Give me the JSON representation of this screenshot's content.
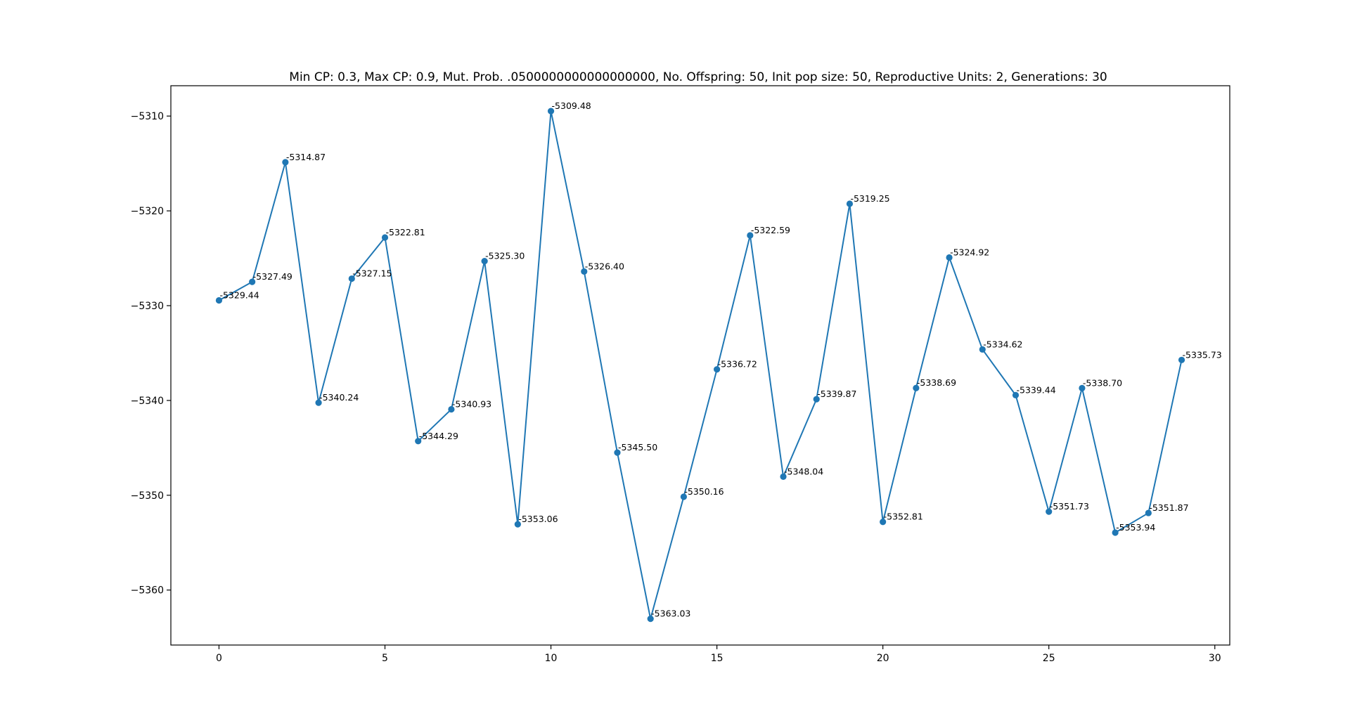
{
  "chart_data": {
    "type": "line",
    "title": "Min CP: 0.3,  Max  CP: 0.9,  Mut. Prob. .0500000000000000000,  No. Offspring: 50,  Init pop size: 50,  Reproductive Units: 2,  Generations: 30",
    "xlabel": "",
    "ylabel": "",
    "xlim": [
      -1.45,
      30.45
    ],
    "ylim": [
      -5365.8,
      -5306.8
    ],
    "xticks": [
      0,
      5,
      10,
      15,
      20,
      25,
      30
    ],
    "yticks": [
      -5310,
      -5320,
      -5330,
      -5340,
      -5350,
      -5360
    ],
    "grid": false,
    "legend": "none",
    "color": "#1f77b4",
    "series": [
      {
        "x": [
          0,
          1,
          2,
          3,
          4,
          5,
          6,
          7,
          8,
          9,
          10,
          11,
          12,
          13,
          14,
          15,
          16,
          17,
          18,
          19,
          20,
          21,
          22,
          23,
          24,
          25,
          26,
          27,
          28,
          29
        ],
        "values": [
          -5329.44,
          -5327.49,
          -5314.87,
          -5340.24,
          -5327.15,
          -5322.81,
          -5344.29,
          -5340.93,
          -5325.3,
          -5353.06,
          -5309.48,
          -5326.4,
          -5345.5,
          -5363.03,
          -5350.16,
          -5336.72,
          -5322.59,
          -5348.04,
          -5339.87,
          -5319.25,
          -5352.81,
          -5338.69,
          -5324.92,
          -5334.62,
          -5339.44,
          -5351.73,
          -5338.7,
          -5353.94,
          -5351.87,
          -5335.73
        ],
        "labels": [
          "-5329.44",
          "-5327.49",
          "-5314.87",
          "-5340.24",
          "-5327.15",
          "-5322.81",
          "-5344.29",
          "-5340.93",
          "-5325.30",
          "-5353.06",
          "-5309.48",
          "-5326.40",
          "-5345.50",
          "-5363.03",
          "-5350.16",
          "-5336.72",
          "-5322.59",
          "-5348.04",
          "-5339.87",
          "-5319.25",
          "-5352.81",
          "-5338.69",
          "-5324.92",
          "-5334.62",
          "-5339.44",
          "-5351.73",
          "-5338.70",
          "-5353.94",
          "-5351.87",
          "-5335.73"
        ]
      }
    ]
  }
}
